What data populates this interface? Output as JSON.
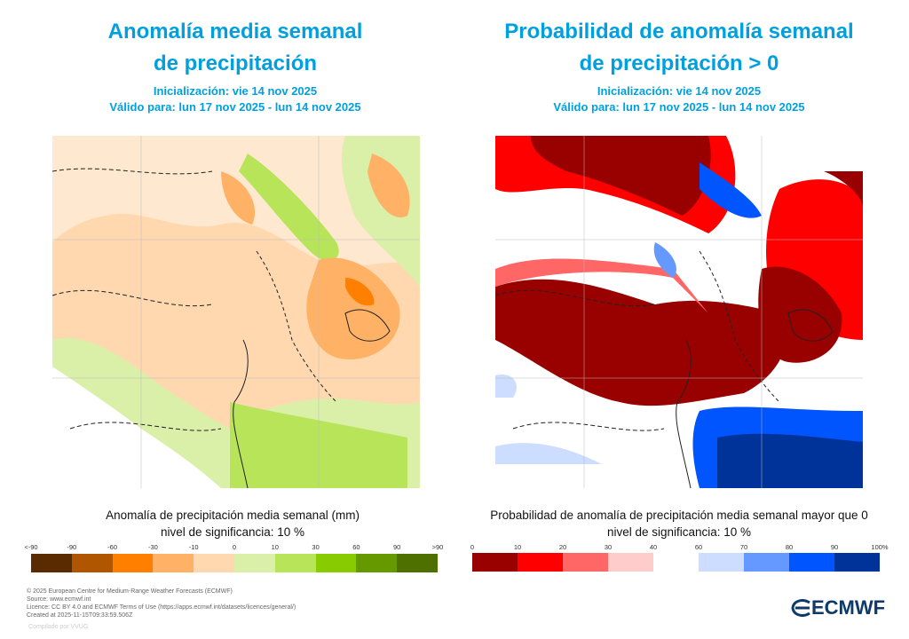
{
  "left": {
    "title_line1": "Anomalía media semanal",
    "title_line2": "de precipitación",
    "init": "Inicialización: vie 14 nov 2025",
    "valid": "Válido para: lun 17 nov 2025 - lun 14 nov 2025",
    "caption": "Anomalía de precipitación media semanal (mm)",
    "significance": "nivel de significancia: 10 %",
    "legend_ticks": [
      "<-90",
      "-90",
      "-60",
      "-30",
      "-10",
      "0",
      "10",
      "30",
      "60",
      "90",
      ">90"
    ],
    "legend_colors": [
      "#5a2a00",
      "#b05500",
      "#ff8000",
      "#ffb266",
      "#ffd8b0",
      "#daf0a8",
      "#b8e45a",
      "#88cc00",
      "#669900",
      "#4d7000"
    ]
  },
  "right": {
    "title_line1": "Probabilidad de anomalía semanal",
    "title_line2": "de precipitación > 0",
    "init": "Inicialización: vie 14 nov 2025",
    "valid": "Válido para: lun 17 nov 2025 - lun 14 nov 2025",
    "caption": "Probabilidad de anomalía de precipitación media semanal mayor que 0",
    "significance": "nivel de significancia: 10 %",
    "legend_ticks_red": [
      "0",
      "10",
      "20",
      "30",
      "40"
    ],
    "legend_ticks_blue": [
      "60",
      "70",
      "80",
      "90",
      "100%"
    ],
    "legend_colors_red": [
      "#990000",
      "#ff0000",
      "#ff6666",
      "#ffcccc"
    ],
    "legend_colors_blue": [
      "#ccddff",
      "#6699ff",
      "#0055ff",
      "#003399"
    ]
  },
  "footer": {
    "lines": [
      "© 2025 European Centre for Medium-Range Weather Forecasts (ECMWF)",
      "Source: www.ecmwf.int",
      "Licence: CC BY 4.0 and ECMWF Terms of Use (https://apps.ecmwf.int/datasets/licences/general/)",
      "Created at 2025-11-15T09:33:59.506Z"
    ],
    "compiled": "Compilado por VVUG",
    "logo_text": "ECMWF"
  }
}
